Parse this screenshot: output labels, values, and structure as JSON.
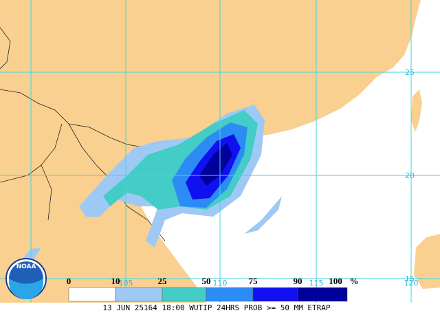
{
  "logo": "NOAA",
  "footer": "13 JUN 25164 18:00 WUTIP 24HRS PROB >= 50 MM ETRAP",
  "grid": {
    "lat_labels": [
      "25",
      "20",
      "15"
    ],
    "lon_labels": [
      "105",
      "110",
      "115",
      "120"
    ]
  },
  "legend": {
    "breaks": [
      0,
      10,
      25,
      50,
      75,
      90,
      100
    ],
    "unit": "%",
    "colors": [
      "#ffffff",
      "#9fc9f5",
      "#44ccc6",
      "#2b8cf5",
      "#1010f0",
      "#00009a"
    ]
  }
}
